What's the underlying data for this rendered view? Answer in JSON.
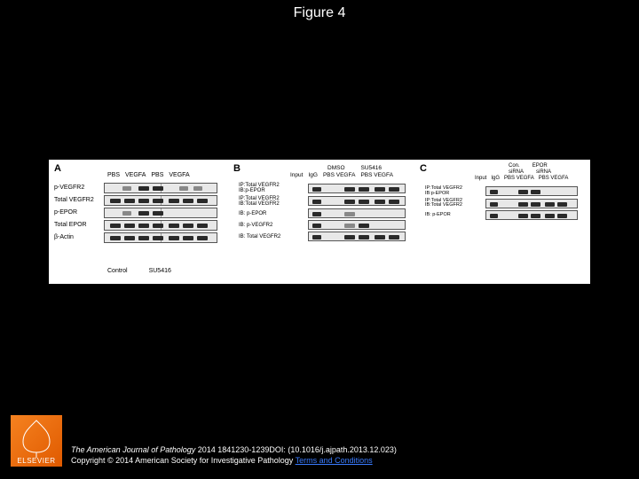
{
  "title": "Figure 4",
  "colors": {
    "bg": "#000000",
    "panel_bg": "#ffffff",
    "band": "#2a2a2a",
    "band_faint": "#888888",
    "gel_bg": "#e8e8e8",
    "gel_border": "#555555"
  },
  "panelA": {
    "letter": "A",
    "top_groups": [
      "PBS",
      "VEGFA",
      "PBS",
      "VEGFA"
    ],
    "rows": [
      {
        "label": "p-VEGFR2",
        "bands": [
          {
            "l": 20,
            "w": 10,
            "f": true
          },
          {
            "l": 38,
            "w": 12
          },
          {
            "l": 54,
            "w": 12
          },
          {
            "l": 84,
            "w": 10,
            "f": true
          },
          {
            "l": 100,
            "w": 10,
            "f": true
          }
        ]
      },
      {
        "label": "Total VEGFR2",
        "bands": [
          {
            "l": 6,
            "w": 12
          },
          {
            "l": 22,
            "w": 12
          },
          {
            "l": 38,
            "w": 12
          },
          {
            "l": 54,
            "w": 12
          },
          {
            "l": 72,
            "w": 12
          },
          {
            "l": 88,
            "w": 12
          },
          {
            "l": 104,
            "w": 12
          }
        ]
      },
      {
        "label": "p-EPOR",
        "bands": [
          {
            "l": 20,
            "w": 10,
            "f": true
          },
          {
            "l": 38,
            "w": 12
          },
          {
            "l": 54,
            "w": 12
          }
        ]
      },
      {
        "label": "Total EPOR",
        "bands": [
          {
            "l": 6,
            "w": 12
          },
          {
            "l": 22,
            "w": 12
          },
          {
            "l": 38,
            "w": 12
          },
          {
            "l": 54,
            "w": 12
          },
          {
            "l": 72,
            "w": 12
          },
          {
            "l": 88,
            "w": 12
          },
          {
            "l": 104,
            "w": 12
          }
        ]
      },
      {
        "label": "β-Actin",
        "bands": [
          {
            "l": 6,
            "w": 12
          },
          {
            "l": 22,
            "w": 12
          },
          {
            "l": 38,
            "w": 12
          },
          {
            "l": 54,
            "w": 12
          },
          {
            "l": 72,
            "w": 12
          },
          {
            "l": 88,
            "w": 12
          },
          {
            "l": 104,
            "w": 12
          }
        ]
      }
    ],
    "foot": [
      "Control",
      "SU5416"
    ]
  },
  "panelB": {
    "letter": "B",
    "top1": [
      "DMSO",
      "SU5416"
    ],
    "top2": [
      "Input",
      "IgG",
      "PBS VEGFA",
      "PBS VEGFA"
    ],
    "rows": [
      {
        "label": "IP:Total VEGFR2\nIB:p-EPOR",
        "bands": [
          {
            "l": 4,
            "w": 10
          },
          {
            "l": 40,
            "w": 12
          },
          {
            "l": 56,
            "w": 12
          },
          {
            "l": 74,
            "w": 12
          },
          {
            "l": 90,
            "w": 12
          }
        ]
      },
      {
        "label": "IP:Total VEGFR2\nIB:Total VEGFR2",
        "bands": [
          {
            "l": 4,
            "w": 10
          },
          {
            "l": 40,
            "w": 12
          },
          {
            "l": 56,
            "w": 12
          },
          {
            "l": 74,
            "w": 12
          },
          {
            "l": 90,
            "w": 12
          }
        ]
      },
      {
        "label": "IB: p-EPOR",
        "bands": [
          {
            "l": 4,
            "w": 10
          },
          {
            "l": 40,
            "w": 12,
            "f": true
          }
        ]
      },
      {
        "label": "IB: p-VEGFR2",
        "bands": [
          {
            "l": 4,
            "w": 10
          },
          {
            "l": 40,
            "w": 12,
            "f": true
          },
          {
            "l": 56,
            "w": 12
          }
        ]
      },
      {
        "label": "IB: Total VEGFR2",
        "bands": [
          {
            "l": 4,
            "w": 10
          },
          {
            "l": 40,
            "w": 12
          },
          {
            "l": 56,
            "w": 12
          },
          {
            "l": 74,
            "w": 12
          },
          {
            "l": 90,
            "w": 12
          }
        ]
      }
    ]
  },
  "panelC": {
    "letter": "C",
    "top1": [
      "Con.",
      "EPOR"
    ],
    "top2": [
      "siRNA",
      "siRNA"
    ],
    "top3": [
      "Input",
      "IgG",
      "PBS VEGFA",
      "PBS VEGFA"
    ],
    "rows": [
      {
        "label": "IP:Total VEGFR2\nIB:p-EPOR",
        "bands": [
          {
            "l": 4,
            "w": 9
          },
          {
            "l": 36,
            "w": 11
          },
          {
            "l": 50,
            "w": 11
          }
        ]
      },
      {
        "label": "IP:Total VEGFR2\nIB:Total VEGFR2",
        "bands": [
          {
            "l": 4,
            "w": 9
          },
          {
            "l": 36,
            "w": 11
          },
          {
            "l": 50,
            "w": 11
          },
          {
            "l": 66,
            "w": 11
          },
          {
            "l": 80,
            "w": 11
          }
        ]
      },
      {
        "label": "IB: p-EPOR",
        "bands": [
          {
            "l": 4,
            "w": 9
          },
          {
            "l": 36,
            "w": 11
          },
          {
            "l": 50,
            "w": 11
          },
          {
            "l": 66,
            "w": 11
          },
          {
            "l": 80,
            "w": 11
          }
        ]
      }
    ]
  },
  "citation": {
    "journal": "The American Journal of Pathology",
    "ref": " 2014 1841230-1239DOI: (10.1016/j.ajpath.2013.12.023)",
    "copyright": "Copyright © 2014 American Society for Investigative Pathology ",
    "terms": "Terms and Conditions"
  },
  "logo": "ELSEVIER"
}
